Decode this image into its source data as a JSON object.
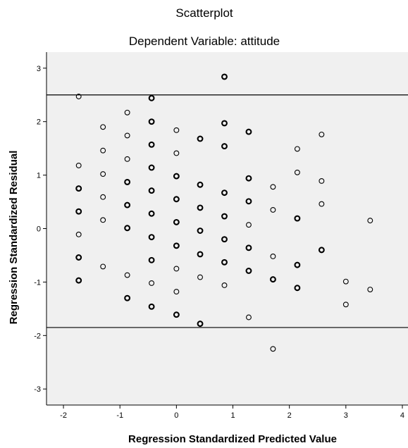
{
  "chart_data": {
    "type": "scatter",
    "title": "Scatterplot",
    "subtitle": "Dependent Variable: attitude",
    "xlabel": "Regression Standardized Predicted Value",
    "ylabel": "Regression Standardized Residual",
    "xlim": [
      -2.3,
      4.1
    ],
    "ylim": [
      -3.3,
      3.3
    ],
    "xticks": [
      "-2",
      "-1",
      "0",
      "1",
      "2",
      "3",
      "4"
    ],
    "yticks": [
      "3",
      "2",
      "1",
      "0",
      "-1",
      "-2",
      "-3"
    ],
    "grid": false,
    "legend": "none",
    "reference_lines": [
      {
        "orientation": "horizontal",
        "y": 2.5
      },
      {
        "orientation": "horizontal",
        "y": -1.85
      }
    ],
    "colors": {
      "plot_background": "#f0f0f0",
      "marker": "#000000",
      "line": "#000000"
    },
    "points": [
      {
        "x": -1.73,
        "y": 2.47,
        "w": 1
      },
      {
        "x": -1.73,
        "y": 1.18,
        "w": 1
      },
      {
        "x": -1.73,
        "y": 0.75,
        "w": 2
      },
      {
        "x": -1.73,
        "y": 0.32,
        "w": 2
      },
      {
        "x": -1.73,
        "y": -0.11,
        "w": 1
      },
      {
        "x": -1.73,
        "y": -0.54,
        "w": 2
      },
      {
        "x": -1.73,
        "y": -0.97,
        "w": 2
      },
      {
        "x": -1.3,
        "y": 1.9,
        "w": 1
      },
      {
        "x": -1.3,
        "y": 1.46,
        "w": 1
      },
      {
        "x": -1.3,
        "y": 1.02,
        "w": 1
      },
      {
        "x": -1.3,
        "y": 0.59,
        "w": 1
      },
      {
        "x": -1.3,
        "y": 0.16,
        "w": 1
      },
      {
        "x": -1.3,
        "y": -0.71,
        "w": 1
      },
      {
        "x": -0.87,
        "y": 2.17,
        "w": 1
      },
      {
        "x": -0.87,
        "y": 1.74,
        "w": 1
      },
      {
        "x": -0.87,
        "y": 1.3,
        "w": 1
      },
      {
        "x": -0.87,
        "y": 0.87,
        "w": 2
      },
      {
        "x": -0.87,
        "y": 0.44,
        "w": 2
      },
      {
        "x": -0.87,
        "y": 0.01,
        "w": 2
      },
      {
        "x": -0.87,
        "y": -0.87,
        "w": 1
      },
      {
        "x": -0.87,
        "y": -1.3,
        "w": 2
      },
      {
        "x": -0.44,
        "y": 2.44,
        "w": 2
      },
      {
        "x": -0.44,
        "y": 2.0,
        "w": 2
      },
      {
        "x": -0.44,
        "y": 1.57,
        "w": 2
      },
      {
        "x": -0.44,
        "y": 1.14,
        "w": 2
      },
      {
        "x": -0.44,
        "y": 0.71,
        "w": 2
      },
      {
        "x": -0.44,
        "y": 0.28,
        "w": 2
      },
      {
        "x": -0.44,
        "y": -0.16,
        "w": 2
      },
      {
        "x": -0.44,
        "y": -0.59,
        "w": 2
      },
      {
        "x": -0.44,
        "y": -1.02,
        "w": 1
      },
      {
        "x": -0.44,
        "y": -1.46,
        "w": 2
      },
      {
        "x": 0.0,
        "y": 1.84,
        "w": 1
      },
      {
        "x": 0.0,
        "y": 1.41,
        "w": 1
      },
      {
        "x": 0.0,
        "y": 0.98,
        "w": 2
      },
      {
        "x": 0.0,
        "y": 0.55,
        "w": 2
      },
      {
        "x": 0.0,
        "y": 0.12,
        "w": 2
      },
      {
        "x": 0.0,
        "y": -0.32,
        "w": 2
      },
      {
        "x": 0.0,
        "y": -0.75,
        "w": 1
      },
      {
        "x": 0.0,
        "y": -1.18,
        "w": 1
      },
      {
        "x": 0.0,
        "y": -1.61,
        "w": 2
      },
      {
        "x": 0.42,
        "y": 1.68,
        "w": 2
      },
      {
        "x": 0.42,
        "y": 0.82,
        "w": 2
      },
      {
        "x": 0.42,
        "y": 0.39,
        "w": 2
      },
      {
        "x": 0.42,
        "y": -0.04,
        "w": 2
      },
      {
        "x": 0.42,
        "y": -0.48,
        "w": 2
      },
      {
        "x": 0.42,
        "y": -0.91,
        "w": 1
      },
      {
        "x": 0.42,
        "y": -1.78,
        "w": 2
      },
      {
        "x": 0.85,
        "y": 2.84,
        "w": 2
      },
      {
        "x": 0.85,
        "y": 1.97,
        "w": 2
      },
      {
        "x": 0.85,
        "y": 1.54,
        "w": 2
      },
      {
        "x": 0.85,
        "y": 0.67,
        "w": 2
      },
      {
        "x": 0.85,
        "y": 0.23,
        "w": 2
      },
      {
        "x": 0.85,
        "y": -0.2,
        "w": 2
      },
      {
        "x": 0.85,
        "y": -0.63,
        "w": 2
      },
      {
        "x": 0.85,
        "y": -1.06,
        "w": 1
      },
      {
        "x": 1.28,
        "y": 1.81,
        "w": 2
      },
      {
        "x": 1.28,
        "y": 0.94,
        "w": 2
      },
      {
        "x": 1.28,
        "y": 0.51,
        "w": 2
      },
      {
        "x": 1.28,
        "y": 0.07,
        "w": 1
      },
      {
        "x": 1.28,
        "y": -0.36,
        "w": 2
      },
      {
        "x": 1.28,
        "y": -0.79,
        "w": 2
      },
      {
        "x": 1.28,
        "y": -1.66,
        "w": 1
      },
      {
        "x": 1.71,
        "y": 0.78,
        "w": 1
      },
      {
        "x": 1.71,
        "y": 0.35,
        "w": 1
      },
      {
        "x": 1.71,
        "y": -0.52,
        "w": 1
      },
      {
        "x": 1.71,
        "y": -0.95,
        "w": 2
      },
      {
        "x": 1.71,
        "y": -2.25,
        "w": 1
      },
      {
        "x": 2.14,
        "y": 1.49,
        "w": 1
      },
      {
        "x": 2.14,
        "y": 1.05,
        "w": 1
      },
      {
        "x": 2.14,
        "y": 0.19,
        "w": 2
      },
      {
        "x": 2.14,
        "y": -0.68,
        "w": 2
      },
      {
        "x": 2.14,
        "y": -1.11,
        "w": 2
      },
      {
        "x": 2.57,
        "y": 1.76,
        "w": 1
      },
      {
        "x": 2.57,
        "y": 0.89,
        "w": 1
      },
      {
        "x": 2.57,
        "y": 0.46,
        "w": 1
      },
      {
        "x": 2.57,
        "y": -0.4,
        "w": 2
      },
      {
        "x": 3.0,
        "y": -0.99,
        "w": 1
      },
      {
        "x": 3.0,
        "y": -1.42,
        "w": 1
      },
      {
        "x": 3.43,
        "y": 0.15,
        "w": 1
      },
      {
        "x": 3.43,
        "y": -1.14,
        "w": 1
      }
    ]
  }
}
